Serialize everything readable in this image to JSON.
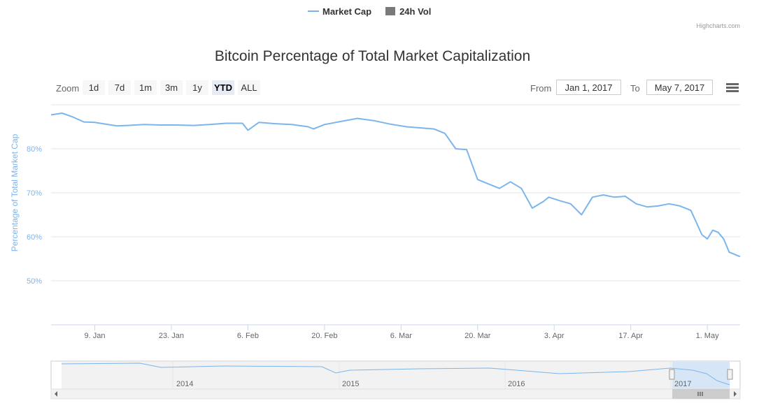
{
  "legend": {
    "items": [
      {
        "label": "Market Cap",
        "color": "#7cb5ec"
      },
      {
        "label": "24h Vol",
        "color": "#7a7a7a"
      }
    ]
  },
  "credits": "Highcharts.com",
  "range_selector": {
    "zoom_label": "Zoom",
    "buttons": [
      "1d",
      "7d",
      "1m",
      "3m",
      "1y",
      "YTD",
      "ALL"
    ],
    "selected": "YTD",
    "from_label": "From",
    "from_value": "Jan 1, 2017",
    "to_label": "To",
    "to_value": "May 7, 2017"
  },
  "icons": {
    "menu": "hamburger-menu-icon"
  },
  "chart_data": {
    "type": "line",
    "title": "Bitcoin Percentage of Total Market Capitalization",
    "ylabel": "Percentage of Total Market Cap",
    "xlabel": "",
    "ylim": [
      40,
      90
    ],
    "yticks": [
      50,
      60,
      70,
      80
    ],
    "ytick_labels": [
      "50%",
      "60%",
      "70%",
      "80%"
    ],
    "x_tick_labels": [
      "9. Jan",
      "23. Jan",
      "6. Feb",
      "20. Feb",
      "6. Mar",
      "20. Mar",
      "3. Apr",
      "17. Apr",
      "1. May"
    ],
    "xlim": [
      "2017-01-01",
      "2017-05-07"
    ],
    "grid": true,
    "series": [
      {
        "name": "Market Cap",
        "color": "#7cb5ec",
        "x": [
          "2017-01-01",
          "2017-01-03",
          "2017-01-05",
          "2017-01-07",
          "2017-01-09",
          "2017-01-11",
          "2017-01-13",
          "2017-01-15",
          "2017-01-18",
          "2017-01-21",
          "2017-01-24",
          "2017-01-27",
          "2017-01-30",
          "2017-02-02",
          "2017-02-05",
          "2017-02-06",
          "2017-02-08",
          "2017-02-11",
          "2017-02-14",
          "2017-02-17",
          "2017-02-18",
          "2017-02-20",
          "2017-02-23",
          "2017-02-26",
          "2017-03-01",
          "2017-03-04",
          "2017-03-07",
          "2017-03-10",
          "2017-03-12",
          "2017-03-14",
          "2017-03-16",
          "2017-03-18",
          "2017-03-20",
          "2017-03-22",
          "2017-03-24",
          "2017-03-26",
          "2017-03-28",
          "2017-03-30",
          "2017-04-01",
          "2017-04-02",
          "2017-04-04",
          "2017-04-06",
          "2017-04-08",
          "2017-04-10",
          "2017-04-12",
          "2017-04-14",
          "2017-04-16",
          "2017-04-18",
          "2017-04-20",
          "2017-04-22",
          "2017-04-24",
          "2017-04-26",
          "2017-04-28",
          "2017-04-30",
          "2017-05-01",
          "2017-05-02",
          "2017-05-03",
          "2017-05-04",
          "2017-05-05",
          "2017-05-06",
          "2017-05-07"
        ],
        "values": [
          87.7,
          88.1,
          87.2,
          86.1,
          86.0,
          85.6,
          85.2,
          85.3,
          85.5,
          85.4,
          85.4,
          85.3,
          85.5,
          85.8,
          85.8,
          84.2,
          86.0,
          85.7,
          85.5,
          85.0,
          84.5,
          85.5,
          86.2,
          86.9,
          86.4,
          85.6,
          85.0,
          84.7,
          84.5,
          83.5,
          80.0,
          79.8,
          73.0,
          72.0,
          71.0,
          72.5,
          71.0,
          66.5,
          68.0,
          69.0,
          68.2,
          67.5,
          65.0,
          69.0,
          69.5,
          69.0,
          69.2,
          67.5,
          66.8,
          67.0,
          67.5,
          67.0,
          66.0,
          60.5,
          59.5,
          61.5,
          61.0,
          59.5,
          56.5,
          56.0,
          55.5
        ]
      }
    ]
  },
  "navigator": {
    "year_labels": [
      "2014",
      "2015",
      "2016",
      "2017"
    ]
  }
}
